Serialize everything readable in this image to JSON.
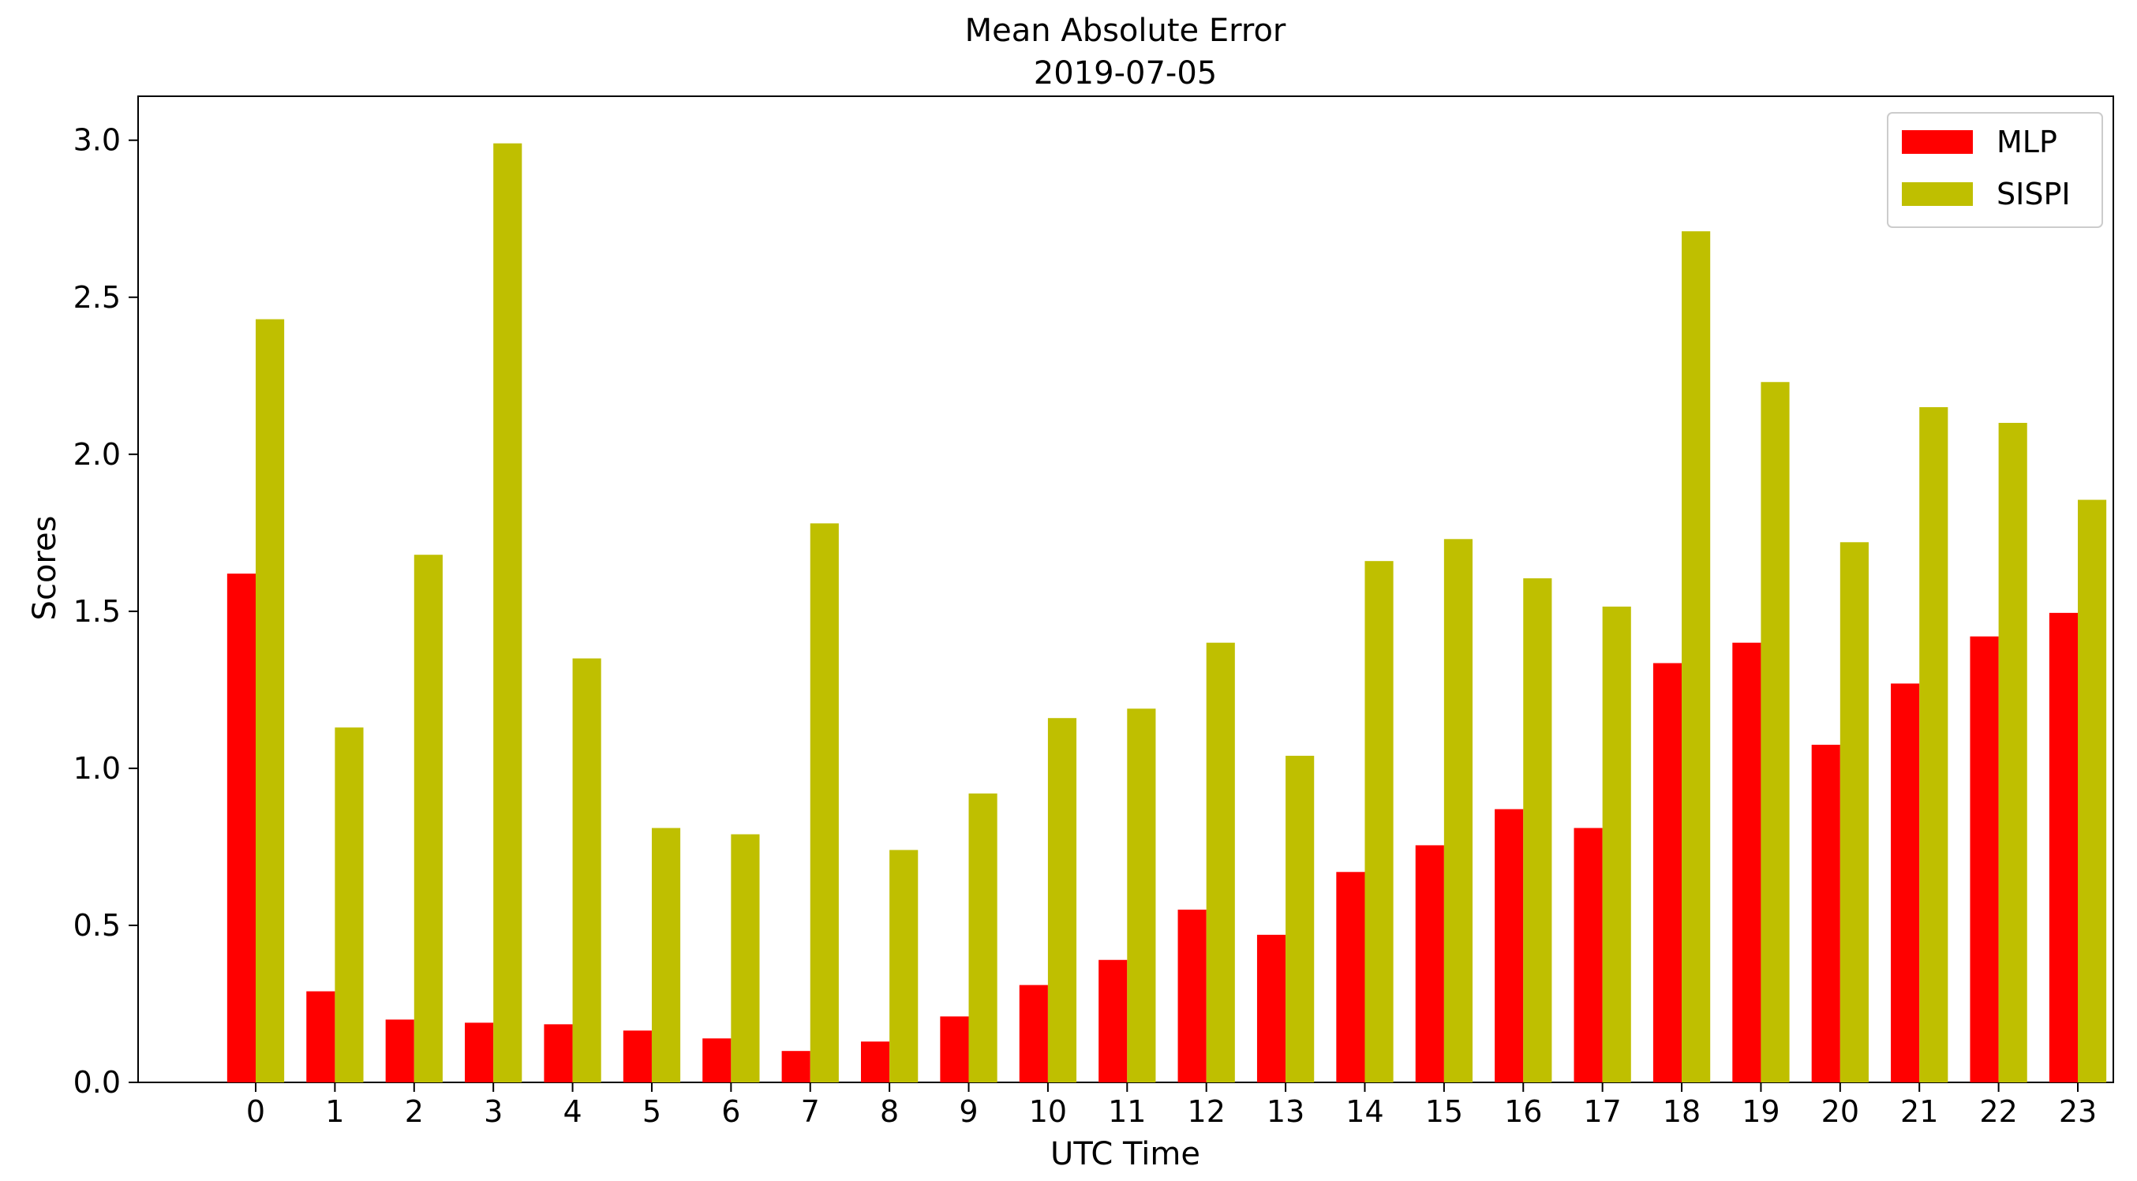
{
  "chart_data": {
    "type": "bar",
    "title": "Mean Absolute Error",
    "subtitle": "2019-07-05",
    "xlabel": "UTC Time",
    "ylabel": "Scores",
    "categories": [
      "0",
      "1",
      "2",
      "3",
      "4",
      "5",
      "6",
      "7",
      "8",
      "9",
      "10",
      "11",
      "12",
      "13",
      "14",
      "15",
      "16",
      "17",
      "18",
      "19",
      "20",
      "21",
      "22",
      "23"
    ],
    "series": [
      {
        "name": "MLP",
        "color": "#ff0000",
        "values": [
          1.62,
          0.29,
          0.2,
          0.19,
          0.185,
          0.165,
          0.14,
          0.1,
          0.13,
          0.21,
          0.31,
          0.39,
          0.55,
          0.47,
          0.67,
          0.755,
          0.87,
          0.81,
          1.335,
          1.4,
          1.075,
          1.27,
          1.42,
          1.495
        ]
      },
      {
        "name": "SISPI",
        "color": "#bfbf00",
        "values": [
          2.43,
          1.13,
          1.68,
          2.99,
          1.35,
          0.81,
          0.79,
          1.78,
          0.74,
          0.92,
          1.16,
          1.19,
          1.4,
          1.04,
          1.66,
          1.73,
          1.605,
          1.515,
          2.71,
          2.23,
          1.72,
          2.15,
          2.1,
          1.855
        ]
      }
    ],
    "yticks": [
      "0.0",
      "0.5",
      "1.0",
      "1.5",
      "2.0",
      "2.5",
      "3.0"
    ],
    "ylim": [
      0,
      3.14
    ],
    "grid": false,
    "legend_position": "top-right"
  }
}
